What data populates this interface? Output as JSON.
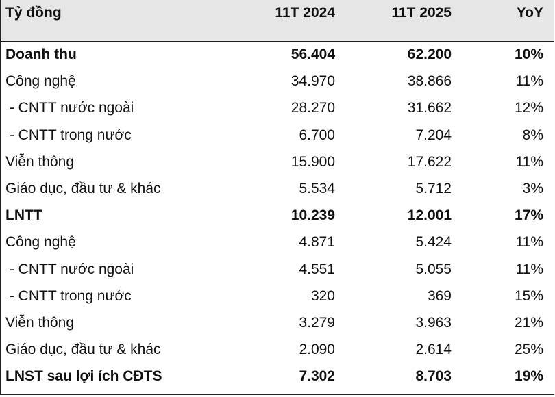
{
  "table": {
    "header": [
      "Tỷ đồng",
      "11T 2024",
      "11T 2025",
      "YoY"
    ],
    "rows": [
      [
        "Doanh thu",
        "56.404",
        "62.200",
        "10%"
      ],
      [
        "Công nghệ",
        "34.970",
        "38.866",
        "11%"
      ],
      [
        " - CNTT nước ngoài",
        "28.270",
        "31.662",
        "12%"
      ],
      [
        " - CNTT trong nước",
        "6.700",
        "7.204",
        "8%"
      ],
      [
        "Viễn thông",
        "15.900",
        "17.622",
        "11%"
      ],
      [
        "Giáo dục, đầu tư & khác",
        "5.534",
        "5.712",
        "3%"
      ],
      [
        "LNTT",
        "10.239",
        "12.001",
        "17%"
      ],
      [
        "Công nghệ",
        "4.871",
        "5.424",
        "11%"
      ],
      [
        " - CNTT nước ngoài",
        "4.551",
        "5.055",
        "11%"
      ],
      [
        " - CNTT trong nước",
        "320",
        "369",
        "15%"
      ],
      [
        "Viễn thông",
        "3.279",
        "3.963",
        "21%"
      ],
      [
        "Giáo dục, đầu tư & khác",
        "2.090",
        "2.614",
        "25%"
      ],
      [
        "LNST sau lợi ích CĐTS",
        "7.302",
        "8.703",
        "19%"
      ]
    ]
  }
}
